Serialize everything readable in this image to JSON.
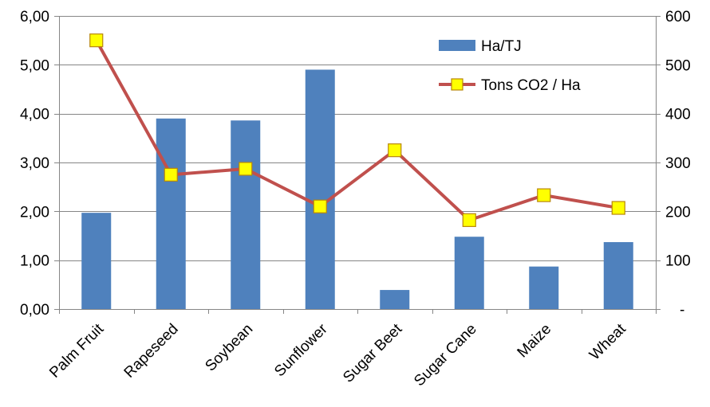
{
  "chart_data": {
    "type": "bar",
    "categories": [
      "Palm Fruit",
      "Rapeseed",
      "Soybean",
      "Sunflower",
      "Sugar Beet",
      "Sugar Cane",
      "Maize",
      "Wheat"
    ],
    "series": [
      {
        "name": "Ha/TJ",
        "type": "bar",
        "axis": "left",
        "color": "#4F81BD",
        "values": [
          1.97,
          3.9,
          3.86,
          4.9,
          0.39,
          1.48,
          0.87,
          1.37
        ]
      },
      {
        "name": "Tons CO2 / Ha",
        "type": "line",
        "axis": "right",
        "color": "#C0504D",
        "marker_color": "#FFFF00",
        "values": [
          550,
          275,
          287,
          210,
          325,
          182,
          233,
          207
        ]
      }
    ],
    "y_left": {
      "lim": [
        0,
        6
      ],
      "ticks": [
        0,
        1,
        2,
        3,
        4,
        5,
        6
      ],
      "tick_labels": [
        "0,00",
        "1,00",
        "2,00",
        "3,00",
        "4,00",
        "5,00",
        "6,00"
      ]
    },
    "y_right": {
      "lim": [
        0,
        600
      ],
      "ticks": [
        0,
        100,
        200,
        300,
        400,
        500,
        600
      ],
      "tick_labels": [
        "-",
        "100",
        "200",
        "300",
        "400",
        "500",
        "600"
      ]
    },
    "grid": true,
    "legend": "top-right"
  }
}
